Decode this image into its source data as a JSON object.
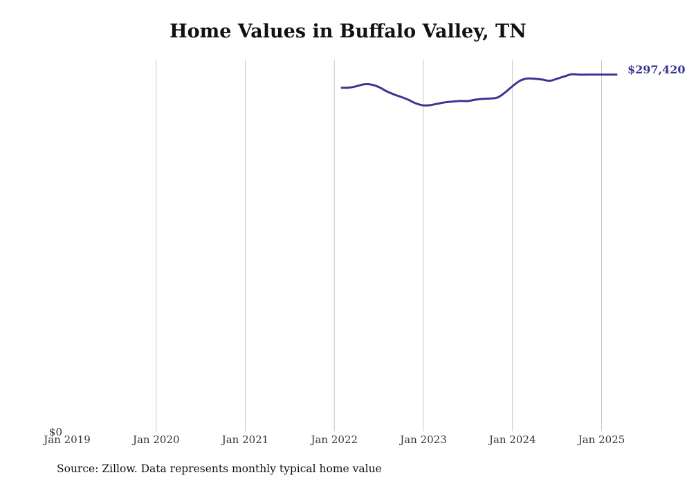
{
  "chart_data": {
    "type": "line",
    "title": "Home Values in Buffalo Valley, TN",
    "xlabel": "",
    "ylabel": "",
    "x_ticks": [
      "Jan 2019",
      "Jan 2020",
      "Jan 2021",
      "Jan 2022",
      "Jan 2023",
      "Jan 2024",
      "Jan 2025"
    ],
    "y_ticks": [
      "$0"
    ],
    "ylim": [
      0,
      310000
    ],
    "xlim": [
      "2019-01",
      "2025-04"
    ],
    "grid": "vertical",
    "legend": "none",
    "series": [
      {
        "color": "#3b3592",
        "x": [
          "2022-02",
          "2022-03",
          "2022-04",
          "2022-05",
          "2022-06",
          "2022-07",
          "2022-08",
          "2022-09",
          "2022-10",
          "2022-11",
          "2022-12",
          "2023-01",
          "2023-02",
          "2023-03",
          "2023-04",
          "2023-05",
          "2023-06",
          "2023-07",
          "2023-08",
          "2023-09",
          "2023-10",
          "2023-11",
          "2023-12",
          "2024-01",
          "2024-02",
          "2024-03",
          "2024-04",
          "2024-05",
          "2024-06",
          "2024-07",
          "2024-08",
          "2024-09",
          "2024-10",
          "2024-11",
          "2024-12",
          "2025-01",
          "2025-02",
          "2025-03"
        ],
        "values": [
          286500,
          286600,
          287800,
          289400,
          289100,
          287100,
          283700,
          281000,
          278800,
          276400,
          273400,
          271800,
          272100,
          273300,
          274400,
          275000,
          275500,
          275400,
          276500,
          277200,
          277500,
          278400,
          282500,
          287800,
          292300,
          294200,
          294000,
          293300,
          292300,
          294000,
          296000,
          297700,
          297420,
          297420,
          297420,
          297420,
          297420,
          297420
        ],
        "end_label": "$297,420"
      }
    ]
  },
  "source": "Source: Zillow. Data represents monthly typical home value"
}
